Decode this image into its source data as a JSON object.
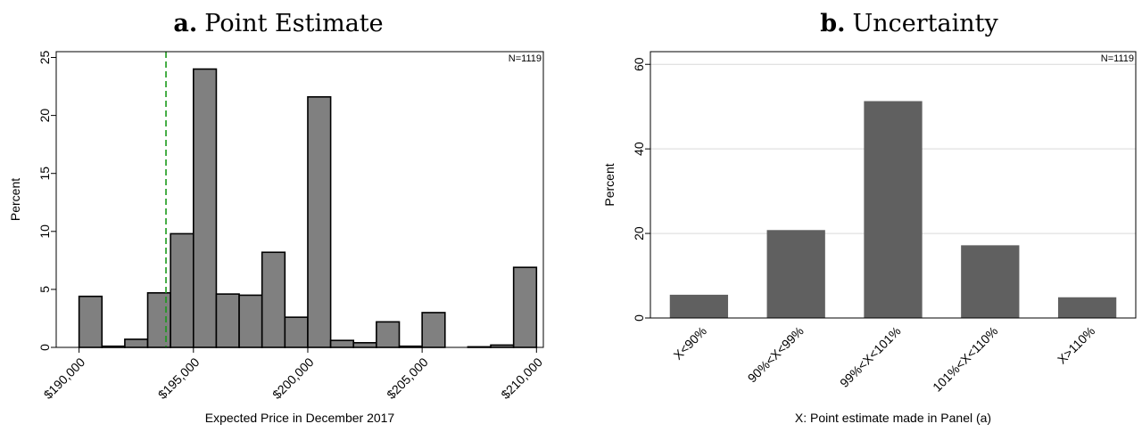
{
  "chart_data": [
    {
      "type": "bar",
      "panel_letter": "a.",
      "title": "Point Estimate",
      "xlabel": "Expected Price in December 2017",
      "ylabel": "Percent",
      "n_label": "N=1119",
      "xlim": [
        189000,
        210300
      ],
      "ylim": [
        0,
        25.5
      ],
      "x_ticks": [
        190000,
        195000,
        200000,
        205000,
        210000
      ],
      "x_tick_labels": [
        "$190,000",
        "$195,000",
        "$200,000",
        "$205,000",
        "$210,000"
      ],
      "y_ticks": [
        0,
        5,
        10,
        15,
        20,
        25
      ],
      "y_tick_labels": [
        "0",
        "5",
        "10",
        "15",
        "20",
        "25"
      ],
      "bin_width": 1000,
      "bins": [
        {
          "x0": 190000,
          "value": 4.4
        },
        {
          "x0": 191000,
          "value": 0.1
        },
        {
          "x0": 192000,
          "value": 0.7
        },
        {
          "x0": 193000,
          "value": 4.7
        },
        {
          "x0": 194000,
          "value": 9.8
        },
        {
          "x0": 195000,
          "value": 24.0
        },
        {
          "x0": 196000,
          "value": 4.6
        },
        {
          "x0": 197000,
          "value": 4.5
        },
        {
          "x0": 198000,
          "value": 8.2
        },
        {
          "x0": 199000,
          "value": 2.6
        },
        {
          "x0": 200000,
          "value": 21.6
        },
        {
          "x0": 201000,
          "value": 0.6
        },
        {
          "x0": 202000,
          "value": 0.4
        },
        {
          "x0": 203000,
          "value": 2.2
        },
        {
          "x0": 204000,
          "value": 0.1
        },
        {
          "x0": 205000,
          "value": 3.0
        },
        {
          "x0": 207000,
          "value": 0.05
        },
        {
          "x0": 208000,
          "value": 0.2
        },
        {
          "x0": 209000,
          "value": 6.9
        }
      ],
      "reference_line_x": 193800,
      "colors": {
        "bar_fill": "#808080",
        "bar_edge": "#000000",
        "reference_line": "#1a9a1a"
      },
      "grid": false
    },
    {
      "type": "bar",
      "panel_letter": "b.",
      "title": "Uncertainty",
      "xlabel": "X: Point estimate made in Panel (a)",
      "ylabel": "Percent",
      "n_label": "N=1119",
      "categories": [
        "X<90%",
        "90%<X<99%",
        "99%<X<101%",
        "101%<X<110%",
        "X>110%"
      ],
      "values": [
        5.5,
        20.8,
        51.3,
        17.2,
        4.9
      ],
      "ylim": [
        0,
        63
      ],
      "y_ticks": [
        0,
        20,
        40,
        60
      ],
      "y_tick_labels": [
        "0",
        "20",
        "40",
        "60"
      ],
      "colors": {
        "bar_fill": "#606060",
        "grid": "#d9d9d9"
      },
      "grid": true
    }
  ]
}
